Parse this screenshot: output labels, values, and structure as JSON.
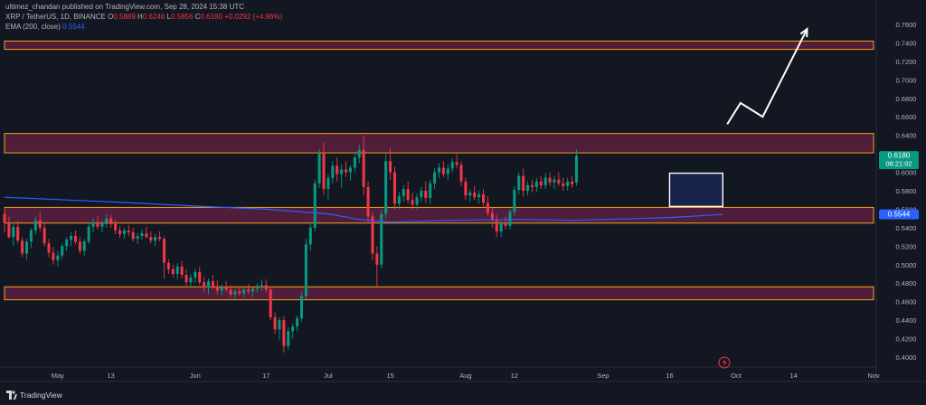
{
  "publish_line": "ultimez_chandan published on TradingView.com, Sep 28, 2024 15:38 UTC",
  "symbol": {
    "title": "XRP / TetherUS, 1D, BINANCE",
    "o_label": "O",
    "o": "0.5889",
    "h_label": "H",
    "h": "0.6246",
    "l_label": "L",
    "l": "0.5856",
    "c_label": "C",
    "c": "0.6180",
    "change": "+0.0292 (+4.96%)"
  },
  "ema": {
    "label": "EMA (200, close)",
    "value": "0.5544",
    "color": "#2962ff"
  },
  "price_axis": {
    "ticks": [
      "0.7600",
      "0.7400",
      "0.7200",
      "0.7000",
      "0.6800",
      "0.6600",
      "0.6400",
      "0.6200",
      "0.6000",
      "0.5800",
      "0.5600",
      "0.5400",
      "0.5200",
      "0.5000",
      "0.4800",
      "0.4600",
      "0.4400",
      "0.4200",
      "0.4000"
    ],
    "last_price": "0.6180",
    "countdown": "08:21:02",
    "ema_value": "0.5544"
  },
  "time_axis": {
    "labels": [
      "May",
      "13",
      "Jun",
      "17",
      "Jul",
      "15",
      "Aug",
      "12",
      "Sep",
      "16",
      "Oct",
      "14",
      "Nov"
    ]
  },
  "footer": {
    "brand": "TradingView"
  },
  "colors": {
    "up": "#089981",
    "down": "#f23645",
    "zone_border": "#f7a21b",
    "zone_fill": "#5c1e3f",
    "ema": "#2962ff",
    "box": "#ffffff",
    "arrow": "#ffffff",
    "bg": "#131722"
  },
  "chart_data": {
    "type": "candlestick",
    "title": "XRP / TetherUS, 1D, BINANCE",
    "x_range": [
      "2024-04-19",
      "2024-11-01"
    ],
    "ylim": [
      0.39,
      0.77
    ],
    "candles": [
      [
        0.555,
        0.562,
        0.535,
        0.545
      ],
      [
        0.545,
        0.552,
        0.528,
        0.53
      ],
      [
        0.53,
        0.544,
        0.52,
        0.541
      ],
      [
        0.541,
        0.548,
        0.523,
        0.526
      ],
      [
        0.526,
        0.53,
        0.508,
        0.512
      ],
      [
        0.512,
        0.528,
        0.505,
        0.525
      ],
      [
        0.525,
        0.54,
        0.518,
        0.537
      ],
      [
        0.537,
        0.552,
        0.533,
        0.548
      ],
      [
        0.548,
        0.557,
        0.536,
        0.54
      ],
      [
        0.54,
        0.546,
        0.52,
        0.523
      ],
      [
        0.523,
        0.528,
        0.508,
        0.513
      ],
      [
        0.513,
        0.519,
        0.5,
        0.505
      ],
      [
        0.505,
        0.515,
        0.498,
        0.51
      ],
      [
        0.51,
        0.523,
        0.506,
        0.52
      ],
      [
        0.52,
        0.53,
        0.515,
        0.527
      ],
      [
        0.527,
        0.535,
        0.52,
        0.531
      ],
      [
        0.531,
        0.537,
        0.522,
        0.525
      ],
      [
        0.525,
        0.53,
        0.512,
        0.515
      ],
      [
        0.515,
        0.528,
        0.51,
        0.525
      ],
      [
        0.525,
        0.545,
        0.522,
        0.541
      ],
      [
        0.541,
        0.551,
        0.535,
        0.546
      ],
      [
        0.546,
        0.553,
        0.538,
        0.541
      ],
      [
        0.541,
        0.548,
        0.535,
        0.545
      ],
      [
        0.545,
        0.555,
        0.54,
        0.55
      ],
      [
        0.55,
        0.554,
        0.54,
        0.544
      ],
      [
        0.544,
        0.549,
        0.533,
        0.537
      ],
      [
        0.537,
        0.542,
        0.529,
        0.533
      ],
      [
        0.533,
        0.54,
        0.528,
        0.537
      ],
      [
        0.537,
        0.543,
        0.531,
        0.535
      ],
      [
        0.535,
        0.54,
        0.525,
        0.528
      ],
      [
        0.528,
        0.534,
        0.522,
        0.531
      ],
      [
        0.531,
        0.538,
        0.527,
        0.534
      ],
      [
        0.534,
        0.541,
        0.528,
        0.53
      ],
      [
        0.53,
        0.536,
        0.523,
        0.526
      ],
      [
        0.526,
        0.533,
        0.52,
        0.53
      ],
      [
        0.53,
        0.536,
        0.525,
        0.528
      ],
      [
        0.528,
        0.53,
        0.485,
        0.502
      ],
      [
        0.502,
        0.506,
        0.49,
        0.495
      ],
      [
        0.495,
        0.5,
        0.486,
        0.49
      ],
      [
        0.49,
        0.502,
        0.484,
        0.498
      ],
      [
        0.498,
        0.504,
        0.485,
        0.489
      ],
      [
        0.489,
        0.495,
        0.477,
        0.481
      ],
      [
        0.481,
        0.49,
        0.475,
        0.486
      ],
      [
        0.486,
        0.496,
        0.48,
        0.492
      ],
      [
        0.492,
        0.498,
        0.478,
        0.481
      ],
      [
        0.481,
        0.487,
        0.47,
        0.475
      ],
      [
        0.475,
        0.485,
        0.468,
        0.482
      ],
      [
        0.482,
        0.489,
        0.474,
        0.477
      ],
      [
        0.477,
        0.483,
        0.468,
        0.472
      ],
      [
        0.472,
        0.479,
        0.466,
        0.476
      ],
      [
        0.476,
        0.482,
        0.47,
        0.473
      ],
      [
        0.473,
        0.478,
        0.465,
        0.468
      ],
      [
        0.468,
        0.474,
        0.462,
        0.471
      ],
      [
        0.471,
        0.477,
        0.466,
        0.469
      ],
      [
        0.469,
        0.475,
        0.464,
        0.473
      ],
      [
        0.473,
        0.479,
        0.468,
        0.471
      ],
      [
        0.471,
        0.476,
        0.465,
        0.474
      ],
      [
        0.474,
        0.48,
        0.47,
        0.477
      ],
      [
        0.477,
        0.484,
        0.472,
        0.478
      ],
      [
        0.478,
        0.484,
        0.47,
        0.473
      ],
      [
        0.473,
        0.476,
        0.44,
        0.443
      ],
      [
        0.443,
        0.448,
        0.425,
        0.43
      ],
      [
        0.43,
        0.443,
        0.418,
        0.44
      ],
      [
        0.44,
        0.444,
        0.405,
        0.412
      ],
      [
        0.412,
        0.432,
        0.408,
        0.428
      ],
      [
        0.428,
        0.436,
        0.42,
        0.433
      ],
      [
        0.433,
        0.445,
        0.428,
        0.442
      ],
      [
        0.442,
        0.47,
        0.438,
        0.466
      ],
      [
        0.466,
        0.528,
        0.462,
        0.522
      ],
      [
        0.522,
        0.545,
        0.515,
        0.54
      ],
      [
        0.54,
        0.592,
        0.536,
        0.588
      ],
      [
        0.588,
        0.625,
        0.583,
        0.62
      ],
      [
        0.62,
        0.632,
        0.575,
        0.582
      ],
      [
        0.582,
        0.598,
        0.57,
        0.594
      ],
      [
        0.594,
        0.612,
        0.588,
        0.607
      ],
      [
        0.607,
        0.616,
        0.59,
        0.598
      ],
      [
        0.598,
        0.609,
        0.583,
        0.603
      ],
      [
        0.603,
        0.612,
        0.595,
        0.6
      ],
      [
        0.6,
        0.608,
        0.591,
        0.605
      ],
      [
        0.605,
        0.62,
        0.6,
        0.616
      ],
      [
        0.616,
        0.63,
        0.61,
        0.624
      ],
      [
        0.624,
        0.64,
        0.575,
        0.584
      ],
      [
        0.584,
        0.59,
        0.545,
        0.552
      ],
      [
        0.552,
        0.557,
        0.505,
        0.512
      ],
      [
        0.512,
        0.52,
        0.475,
        0.5
      ],
      [
        0.5,
        0.56,
        0.496,
        0.555
      ],
      [
        0.555,
        0.62,
        0.55,
        0.612
      ],
      [
        0.612,
        0.626,
        0.592,
        0.6
      ],
      [
        0.6,
        0.606,
        0.56,
        0.566
      ],
      [
        0.566,
        0.579,
        0.56,
        0.574
      ],
      [
        0.574,
        0.586,
        0.568,
        0.582
      ],
      [
        0.582,
        0.59,
        0.566,
        0.57
      ],
      [
        0.57,
        0.578,
        0.56,
        0.565
      ],
      [
        0.565,
        0.577,
        0.56,
        0.573
      ],
      [
        0.573,
        0.584,
        0.568,
        0.58
      ],
      [
        0.58,
        0.59,
        0.567,
        0.572
      ],
      [
        0.572,
        0.592,
        0.566,
        0.588
      ],
      [
        0.588,
        0.604,
        0.582,
        0.6
      ],
      [
        0.6,
        0.61,
        0.594,
        0.605
      ],
      [
        0.605,
        0.612,
        0.595,
        0.598
      ],
      [
        0.598,
        0.608,
        0.592,
        0.604
      ],
      [
        0.604,
        0.615,
        0.6,
        0.611
      ],
      [
        0.611,
        0.62,
        0.604,
        0.608
      ],
      [
        0.608,
        0.612,
        0.585,
        0.59
      ],
      [
        0.59,
        0.594,
        0.57,
        0.575
      ],
      [
        0.575,
        0.581,
        0.568,
        0.578
      ],
      [
        0.578,
        0.585,
        0.57,
        0.573
      ],
      [
        0.573,
        0.58,
        0.566,
        0.576
      ],
      [
        0.576,
        0.582,
        0.563,
        0.567
      ],
      [
        0.567,
        0.574,
        0.552,
        0.556
      ],
      [
        0.556,
        0.562,
        0.54,
        0.548
      ],
      [
        0.548,
        0.554,
        0.53,
        0.536
      ],
      [
        0.536,
        0.548,
        0.53,
        0.545
      ],
      [
        0.545,
        0.552,
        0.538,
        0.542
      ],
      [
        0.542,
        0.56,
        0.538,
        0.557
      ],
      [
        0.557,
        0.585,
        0.553,
        0.581
      ],
      [
        0.581,
        0.6,
        0.576,
        0.596
      ],
      [
        0.596,
        0.604,
        0.574,
        0.58
      ],
      [
        0.58,
        0.59,
        0.575,
        0.586
      ],
      [
        0.586,
        0.592,
        0.578,
        0.584
      ],
      [
        0.584,
        0.594,
        0.579,
        0.59
      ],
      [
        0.59,
        0.596,
        0.582,
        0.586
      ],
      [
        0.586,
        0.599,
        0.582,
        0.594
      ],
      [
        0.594,
        0.6,
        0.585,
        0.589
      ],
      [
        0.589,
        0.596,
        0.582,
        0.592
      ],
      [
        0.592,
        0.6,
        0.585,
        0.588
      ],
      [
        0.588,
        0.594,
        0.58,
        0.585
      ],
      [
        0.585,
        0.594,
        0.58,
        0.59
      ],
      [
        0.59,
        0.596,
        0.583,
        0.587
      ],
      [
        0.5889,
        0.6246,
        0.5856,
        0.618
      ]
    ],
    "ema_points": [
      [
        "2024-04-19",
        0.573
      ],
      [
        "2024-05-13",
        0.568
      ],
      [
        "2024-06-03",
        0.563
      ],
      [
        "2024-06-17",
        0.56
      ],
      [
        "2024-07-01",
        0.555
      ],
      [
        "2024-07-08",
        0.549
      ],
      [
        "2024-07-15",
        0.546
      ],
      [
        "2024-07-29",
        0.548
      ],
      [
        "2024-08-12",
        0.549
      ],
      [
        "2024-08-26",
        0.548
      ],
      [
        "2024-09-09",
        0.55
      ],
      [
        "2024-09-16",
        0.551
      ],
      [
        "2024-09-28",
        0.5544
      ]
    ],
    "zones": [
      [
        0.733,
        0.742
      ],
      [
        0.621,
        0.642
      ],
      [
        0.545,
        0.562
      ],
      [
        0.462,
        0.476
      ]
    ],
    "consolidation_box": {
      "from": "2024-09-16",
      "to": "2024-09-28",
      "low": 0.563,
      "high": 0.599
    },
    "projection": [
      [
        "2024-09-29",
        0.652
      ],
      [
        "2024-10-02",
        0.675
      ],
      [
        "2024-10-07",
        0.66
      ],
      [
        "2024-10-17",
        0.755
      ]
    ],
    "last_price": 0.618,
    "ema_value": 0.5544
  }
}
